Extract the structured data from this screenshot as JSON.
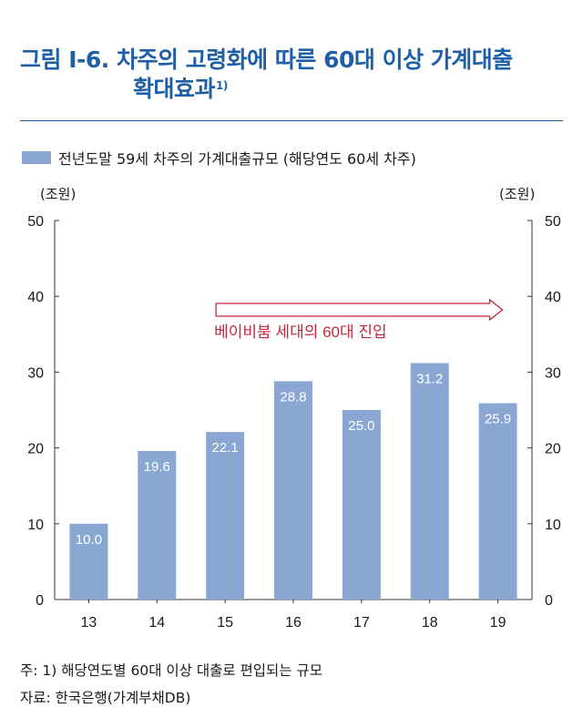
{
  "figure": {
    "title_line1": "그림 Ⅰ-6. 차주의 고령화에 따른 60대 이상 가계대출",
    "title_line2": "확대효과",
    "title_sup": "1)"
  },
  "legend": {
    "label": "전년도말 59세 차주의 가계대출규모 (해당연도 60세 차주)"
  },
  "units": {
    "left": "(조원)",
    "right": "(조원)"
  },
  "chart_data": {
    "type": "bar",
    "categories": [
      "13",
      "14",
      "15",
      "16",
      "17",
      "18",
      "19"
    ],
    "values": [
      10.0,
      19.6,
      22.1,
      28.8,
      25.0,
      31.2,
      25.9
    ],
    "value_labels": [
      "10.0",
      "19.6",
      "22.1",
      "28.8",
      "25.0",
      "31.2",
      "25.9"
    ],
    "series_name": "전년도말 59세 차주의 가계대출규모 (해당연도 60세 차주)",
    "ylim": [
      0,
      50
    ],
    "yticks": [
      0,
      10,
      20,
      30,
      40,
      50
    ],
    "ylabel_left": "(조원)",
    "ylabel_right": "(조원)",
    "annotation": {
      "text": "베이비붐 세대의 60대 진입",
      "arrow_from_category": "15",
      "arrow_to_category": "19"
    },
    "bar_color": "#8aa7d4",
    "annotation_color": "#c8263c"
  },
  "notes": {
    "note": "주: 1) 해당연도별 60대 이상 대출로 편입되는 규모",
    "source": "자료: 한국은행(가계부채DB)"
  },
  "colors": {
    "title": "#1f5fa5",
    "bar": "#8aa7d4",
    "annotation": "#c8263c"
  }
}
